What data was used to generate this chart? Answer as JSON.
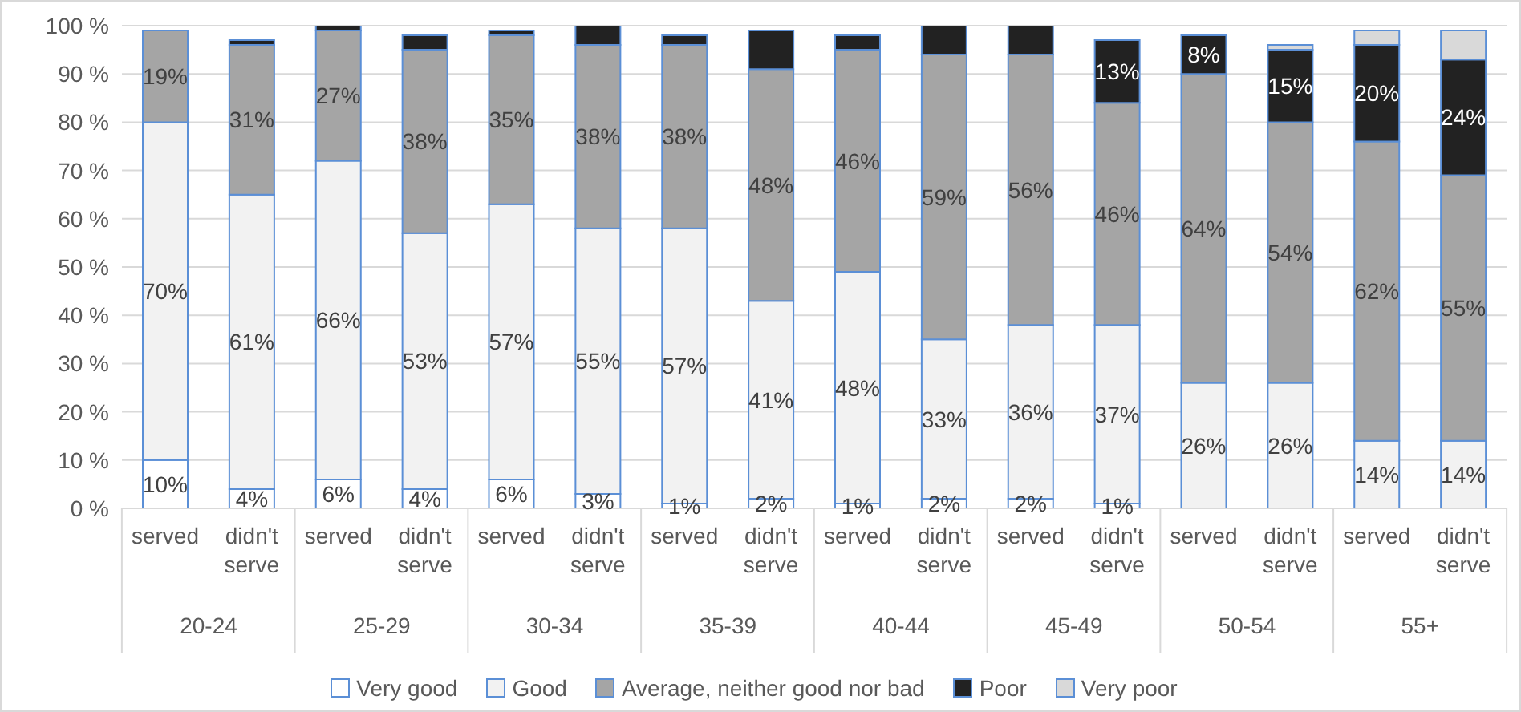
{
  "chart_data": {
    "type": "bar",
    "stacked": true,
    "categories": [
      "served",
      "didn't serve",
      "served",
      "didn't serve",
      "served",
      "didn't serve",
      "served",
      "didn't serve",
      "served",
      "didn't serve",
      "served",
      "didn't serve",
      "served",
      "didn't serve",
      "served",
      "didn't serve"
    ],
    "annotations": [
      "20-24",
      "25-29",
      "30-34",
      "35-39",
      "40-44",
      "45-49",
      "50-54",
      "55+"
    ],
    "series": [
      {
        "name": "Very good",
        "color": "#ffffff",
        "values": [
          10,
          4,
          6,
          4,
          6,
          3,
          1,
          2,
          1,
          2,
          2,
          1,
          0,
          0,
          0,
          0
        ],
        "value_labels": [
          "10%",
          "4%",
          "6%",
          "4%",
          "6%",
          "3%",
          "1%",
          "2%",
          "1%",
          "2%",
          "2%",
          "1%",
          null,
          null,
          null,
          null
        ]
      },
      {
        "name": "Good",
        "color": "#f2f2f2",
        "values": [
          70,
          61,
          66,
          53,
          57,
          55,
          57,
          41,
          48,
          33,
          36,
          37,
          26,
          26,
          14,
          14
        ],
        "value_labels": [
          "70%",
          "61%",
          "66%",
          "53%",
          "57%",
          "55%",
          "57%",
          "41%",
          "48%",
          "33%",
          "36%",
          "37%",
          "26%",
          "26%",
          "14%",
          "14%"
        ]
      },
      {
        "name": "Average, neither good nor bad",
        "color": "#a5a5a5",
        "values": [
          19,
          31,
          27,
          38,
          35,
          38,
          38,
          48,
          46,
          59,
          56,
          46,
          64,
          54,
          62,
          55
        ],
        "value_labels": [
          "19%",
          "31%",
          "27%",
          "38%",
          "35%",
          "38%",
          "38%",
          "48%",
          "46%",
          "59%",
          "56%",
          "46%",
          "64%",
          "54%",
          "62%",
          "55%"
        ]
      },
      {
        "name": "Poor",
        "color": "#222222",
        "values": [
          0,
          1,
          1,
          3,
          1,
          4,
          2,
          8,
          3,
          6,
          6,
          13,
          8,
          15,
          20,
          24
        ],
        "value_labels": [
          null,
          null,
          null,
          null,
          null,
          null,
          null,
          null,
          null,
          null,
          null,
          "13%",
          "8%",
          "15%",
          "20%",
          "24%"
        ]
      },
      {
        "name": "Very poor",
        "color": "#d9d9d9",
        "values": [
          0,
          0,
          0,
          0,
          0,
          0,
          0,
          0,
          0,
          0,
          0,
          0,
          0,
          1,
          3,
          6
        ]
      }
    ],
    "ylim": [
      0,
      100
    ],
    "yticks": [
      {
        "value": 0,
        "label": "0 %"
      },
      {
        "value": 10,
        "label": "10 %"
      },
      {
        "value": 20,
        "label": "20 %"
      },
      {
        "value": 30,
        "label": "30 %"
      },
      {
        "value": 40,
        "label": "40 %"
      },
      {
        "value": 50,
        "label": "50 %"
      },
      {
        "value": 60,
        "label": "60 %"
      },
      {
        "value": 70,
        "label": "70 %"
      },
      {
        "value": 80,
        "label": "80 %"
      },
      {
        "value": 90,
        "label": "90 %"
      },
      {
        "value": 100,
        "label": "100 %"
      }
    ],
    "grid": "y",
    "legend": "bottom"
  }
}
